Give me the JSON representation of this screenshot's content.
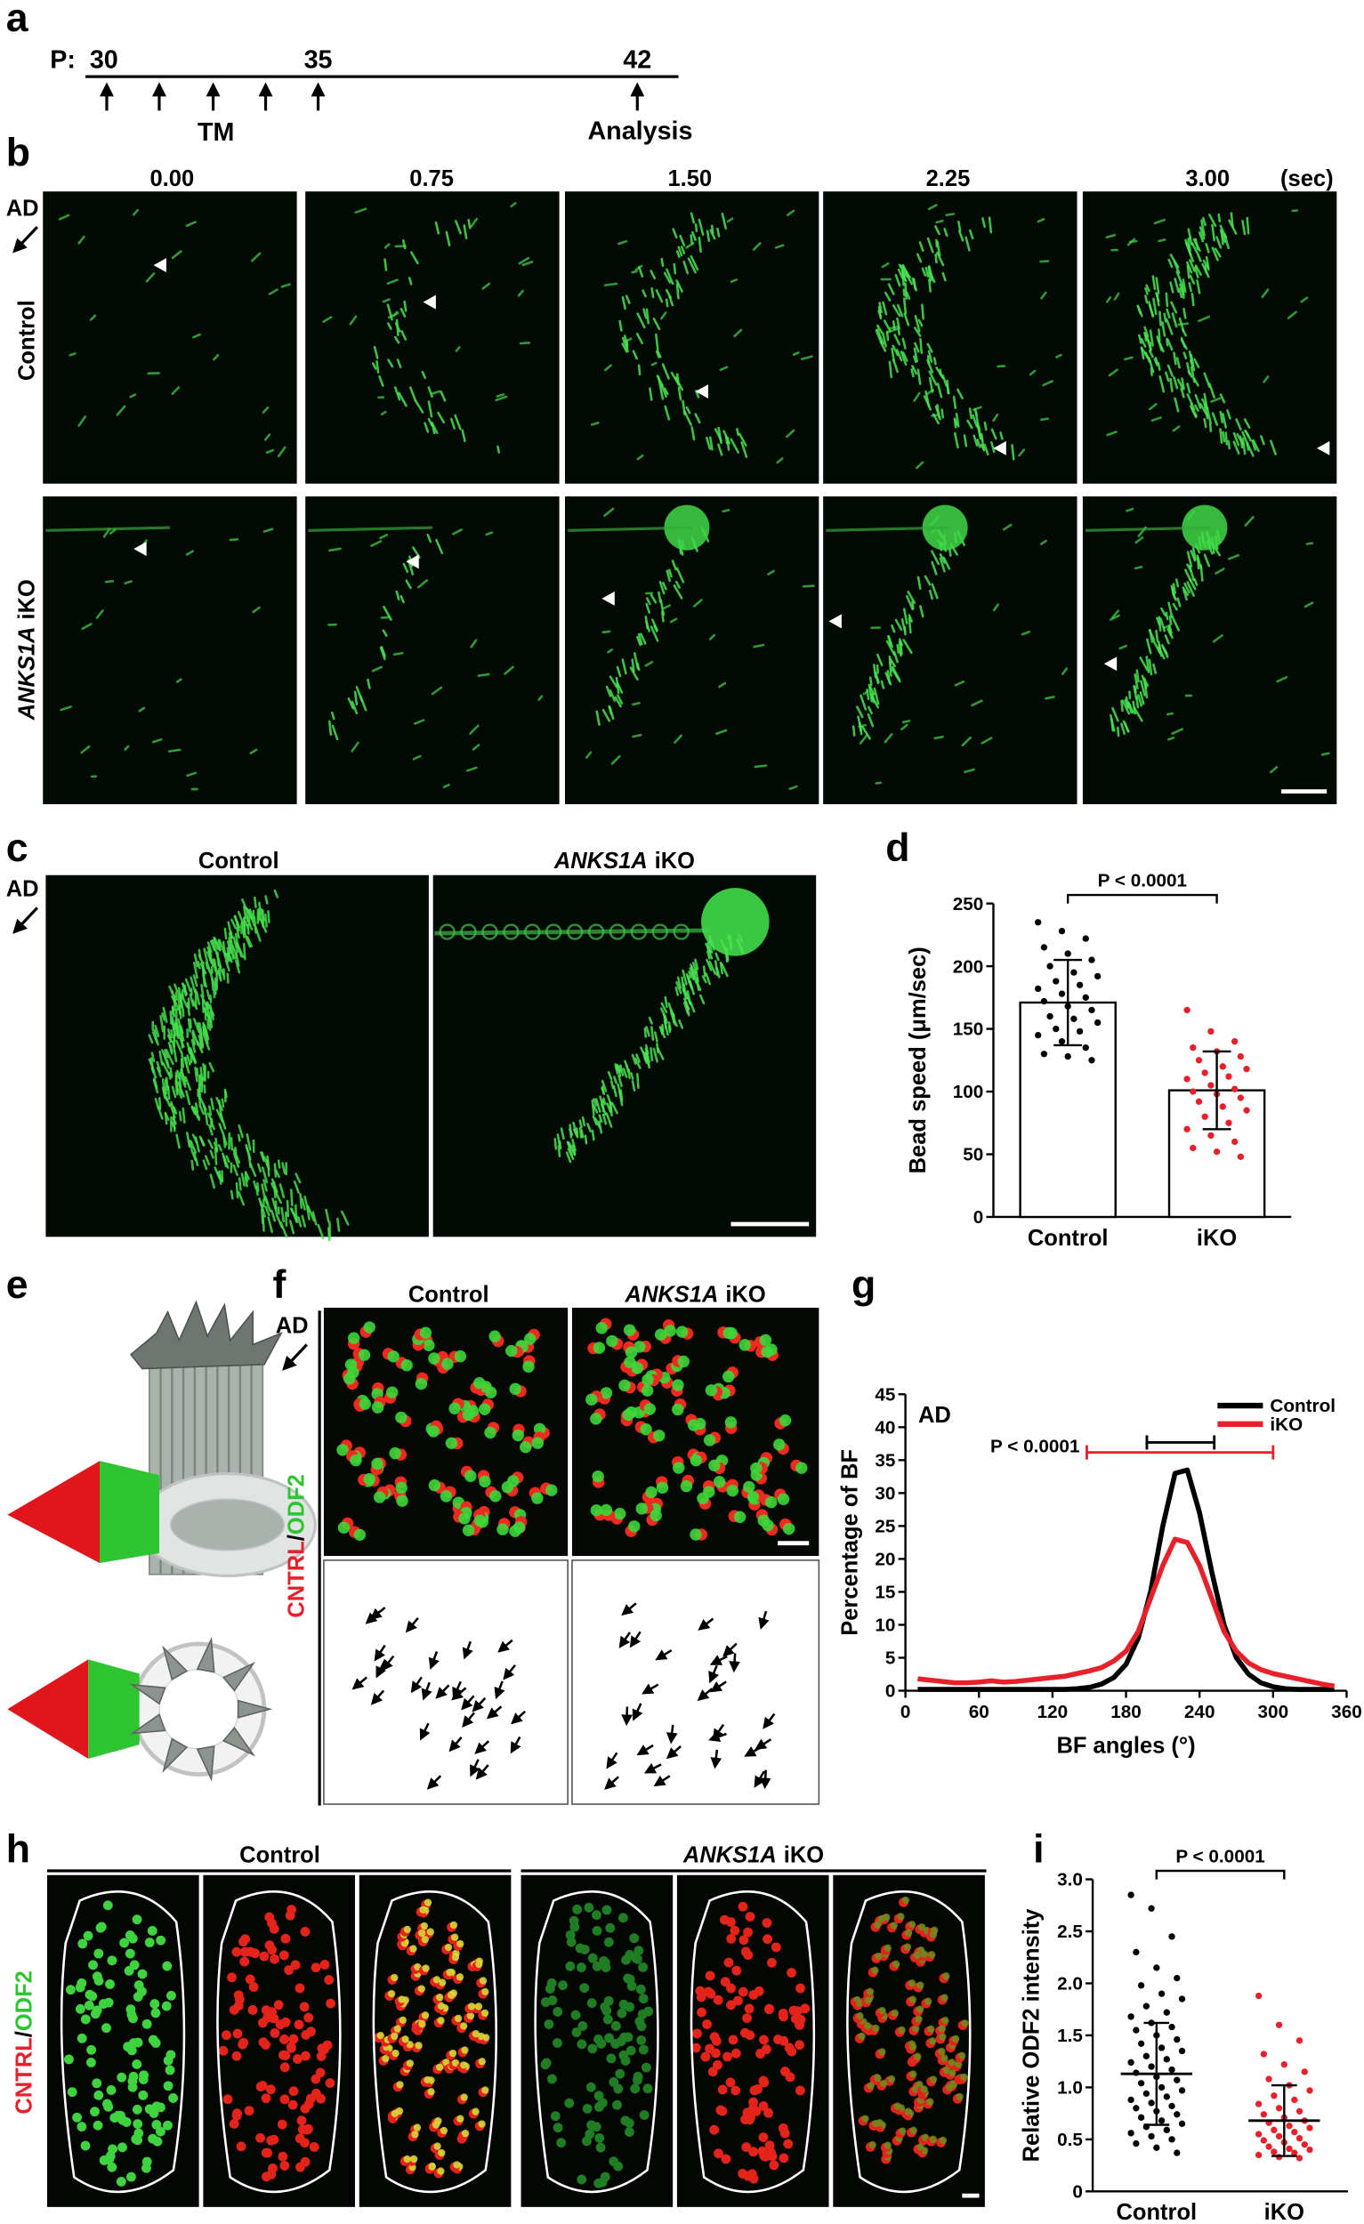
{
  "panels": {
    "a": {
      "label": "a",
      "prefix": "P:",
      "days": [
        30,
        35,
        42
      ],
      "treatment": "TM",
      "analysis": "Analysis"
    },
    "b": {
      "label": "b",
      "times": [
        "0.00",
        "0.75",
        "1.50",
        "2.25",
        "3.00"
      ],
      "unit": "(sec)",
      "direction": "AD",
      "control": "Control",
      "ko": {
        "gene": "ANKS1A",
        "suffix": "iKO"
      }
    },
    "c": {
      "label": "c",
      "direction": "AD",
      "control": "Control",
      "ko": {
        "gene": "ANKS1A",
        "suffix": "iKO"
      }
    },
    "d": {
      "label": "d"
    },
    "e": {
      "label": "e"
    },
    "f": {
      "label": "f",
      "direction": "AD",
      "control": "Control",
      "ko": {
        "gene": "ANKS1A",
        "suffix": "iKO"
      },
      "stain": {
        "first": "CNTRL",
        "separator": "/",
        "second": "ODF2"
      }
    },
    "g": {
      "label": "g"
    },
    "h": {
      "label": "h",
      "control": "Control",
      "ko": {
        "gene": "ANKS1A",
        "suffix": "iKO"
      },
      "stain": {
        "first": "CNTRL",
        "separator": "/",
        "second": "ODF2"
      }
    },
    "i": {
      "label": "i"
    }
  },
  "chart_data": [
    {
      "type": "bar",
      "annotation": "P < 0.0001",
      "y_label": "Bead speed (μm/sec)",
      "categories": [
        "Control",
        "iKO"
      ],
      "values": [
        171,
        101
      ],
      "errors": [
        34,
        31
      ],
      "color": "#ffffff",
      "points": [
        [
          235,
          228,
          222,
          215,
          210,
          205,
          200,
          195,
          192,
          188,
          185,
          182,
          178,
          175,
          172,
          168,
          165,
          160,
          158,
          155,
          150,
          148,
          145,
          140,
          135,
          130,
          128,
          125
        ],
        [
          165,
          148,
          140,
          135,
          132,
          128,
          125,
          120,
          118,
          115,
          112,
          110,
          105,
          102,
          100,
          98,
          95,
          92,
          88,
          85,
          80,
          75,
          70,
          65,
          60,
          55,
          52,
          48
        ]
      ],
      "point_colors": [
        "#000000",
        "#e8202a"
      ],
      "ylim": [
        0,
        250
      ],
      "yticks": [
        0,
        50,
        100,
        150,
        200,
        250
      ]
    },
    {
      "type": "line",
      "annotation": "AD",
      "p_label": "P < 0.0001",
      "x_label": "BF angles (°)",
      "y_label": "Percentage of BF",
      "x": [
        10,
        20,
        30,
        40,
        50,
        60,
        70,
        80,
        90,
        100,
        110,
        120,
        130,
        140,
        150,
        160,
        170,
        180,
        190,
        200,
        210,
        220,
        230,
        240,
        250,
        260,
        270,
        280,
        290,
        300,
        310,
        320,
        330,
        340,
        350
      ],
      "series": [
        {
          "name": "Control",
          "color": "#000000",
          "range": [
            197,
            252
          ],
          "values": [
            0.2,
            0.2,
            0.2,
            0.2,
            0.2,
            0.2,
            0.2,
            0.2,
            0.2,
            0.2,
            0.2,
            0.2,
            0.2,
            0.3,
            0.5,
            1,
            2,
            4,
            8,
            15,
            25,
            33,
            33.5,
            27,
            18,
            10,
            5,
            2.5,
            1.2,
            0.6,
            0.3,
            0.2,
            0.2,
            0.2,
            0.2
          ]
        },
        {
          "name": "iKO",
          "color": "#e8202a",
          "range": [
            148,
            300
          ],
          "values": [
            1.8,
            1.6,
            1.4,
            1.2,
            1.2,
            1.3,
            1.5,
            1.3,
            1.4,
            1.6,
            1.8,
            2,
            2.2,
            2.6,
            3,
            3.5,
            4.5,
            6,
            9,
            14,
            19,
            23,
            22.5,
            19,
            14,
            9,
            6,
            4.2,
            3.2,
            2.6,
            2.2,
            1.8,
            1.4,
            1,
            0.7
          ]
        }
      ],
      "legend": "upper right",
      "xlim": [
        0,
        360
      ],
      "xticks": [
        0,
        60,
        120,
        180,
        240,
        300,
        360
      ],
      "ylim": [
        0,
        45
      ],
      "yticks": [
        0,
        5,
        10,
        15,
        20,
        25,
        30,
        35,
        40,
        45
      ]
    },
    {
      "type": "scatter",
      "annotation": "P < 0.0001",
      "y_label": "Relative ODF2 intensity",
      "categories": [
        "Control",
        "iKO"
      ],
      "means": [
        1.13,
        0.68
      ],
      "errors": [
        0.49,
        0.34
      ],
      "points": [
        [
          2.85,
          2.72,
          2.45,
          2.3,
          2.15,
          2.05,
          1.98,
          1.9,
          1.85,
          1.78,
          1.72,
          1.68,
          1.62,
          1.58,
          1.55,
          1.5,
          1.46,
          1.42,
          1.38,
          1.35,
          1.3,
          1.27,
          1.24,
          1.2,
          1.17,
          1.14,
          1.1,
          1.07,
          1.04,
          1.0,
          0.97,
          0.94,
          0.91,
          0.88,
          0.85,
          0.82,
          0.8,
          0.77,
          0.74,
          0.71,
          0.68,
          0.65,
          0.62,
          0.59,
          0.56,
          0.53,
          0.5,
          0.46,
          0.42,
          0.37
        ],
        [
          1.88,
          1.6,
          1.45,
          1.32,
          1.22,
          1.15,
          1.08,
          1.02,
          0.97,
          0.92,
          0.88,
          0.84,
          0.8,
          0.77,
          0.74,
          0.71,
          0.68,
          0.66,
          0.63,
          0.61,
          0.59,
          0.57,
          0.55,
          0.53,
          0.51,
          0.49,
          0.47,
          0.45,
          0.43,
          0.41,
          0.4,
          0.38,
          0.37,
          0.35,
          0.33,
          0.32
        ]
      ],
      "point_colors": [
        "#000000",
        "#e8202a"
      ],
      "ylim": [
        0,
        3
      ],
      "yticks": [
        0,
        0.5,
        {
          "value": 1,
          "label": "1.0"
        },
        1.5,
        {
          "value": 2,
          "label": "2.0"
        },
        2.5,
        {
          "value": 3,
          "label": "3.0"
        }
      ]
    }
  ]
}
